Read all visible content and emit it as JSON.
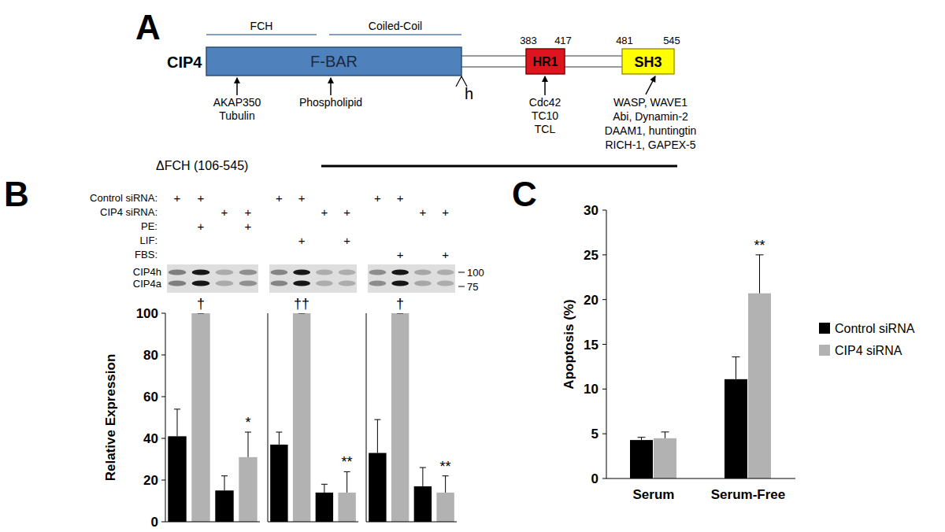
{
  "panel_labels": [
    "A",
    "B",
    "C"
  ],
  "diagram": {
    "protein": "CIP4",
    "main_domain": "F-BAR",
    "subregions": [
      "FCH",
      "Coiled-Coil"
    ],
    "hinge": "h",
    "hr1": {
      "label": "HR1",
      "start": 383,
      "end": 417
    },
    "sh3": {
      "label": "SH3",
      "start": 481,
      "end": 545
    },
    "binders": [
      [
        "AKAP350",
        "Tubulin"
      ],
      [
        "Phospholipid"
      ],
      [
        "Cdc42",
        "TC10",
        "TCL"
      ],
      [
        "WASP, WAVE1",
        "Abi, Dynamin-2",
        "DAAM1, huntingtin",
        "RICH-1, GAPEX-5"
      ]
    ],
    "construct": "ΔFCH (106-545)"
  },
  "blot": {
    "rows": [
      {
        "label": "Control siRNA:",
        "groups": [
          [
            "+",
            "+",
            null,
            null
          ],
          [
            "+",
            "+",
            null,
            null
          ],
          [
            "+",
            "+",
            null,
            null
          ]
        ]
      },
      {
        "label": "CIP4 siRNA:",
        "groups": [
          [
            null,
            null,
            "+",
            "+"
          ],
          [
            null,
            null,
            "+",
            "+"
          ],
          [
            null,
            null,
            "+",
            "+"
          ]
        ]
      },
      {
        "label": "PE:",
        "groups": [
          [
            null,
            "+",
            null,
            "+"
          ],
          [
            null,
            null,
            null,
            null
          ],
          [
            null,
            null,
            null,
            null
          ]
        ]
      },
      {
        "label": "LIF:",
        "groups": [
          [
            null,
            null,
            null,
            null
          ],
          [
            null,
            "+",
            null,
            "+"
          ],
          [
            null,
            null,
            null,
            null
          ]
        ]
      },
      {
        "label": "FBS:",
        "groups": [
          [
            null,
            null,
            null,
            null
          ],
          [
            null,
            null,
            null,
            null
          ],
          [
            null,
            "+",
            null,
            "+"
          ]
        ]
      }
    ],
    "bands": [
      "CIP4h",
      "CIP4a"
    ],
    "size_markers": [
      100,
      75
    ]
  },
  "chart_data": [
    {
      "type": "bar",
      "categories": [
        null,
        null,
        null,
        null
      ],
      "values": [
        41,
        100,
        15,
        31
      ],
      "errors": [
        13,
        0,
        7,
        12
      ],
      "colors": [
        "#000000",
        "#b2b2b2",
        "#000000",
        "#b2b2b2"
      ],
      "annotations": [
        null,
        "†",
        null,
        "*"
      ],
      "ylim": [
        0,
        100
      ],
      "yticks": [
        0,
        20,
        40,
        60,
        80,
        100
      ],
      "ylabel": "Relative Expression",
      "tick_labels": "y"
    },
    {
      "type": "bar",
      "categories": [
        null,
        null,
        null,
        null
      ],
      "values": [
        37,
        100,
        14,
        14
      ],
      "errors": [
        6,
        0,
        4,
        10
      ],
      "colors": [
        "#000000",
        "#b2b2b2",
        "#000000",
        "#b2b2b2"
      ],
      "annotations": [
        null,
        "††",
        null,
        "**"
      ],
      "ylim": [
        0,
        100
      ],
      "tick_labels": false
    },
    {
      "type": "bar",
      "categories": [
        null,
        null,
        null,
        null
      ],
      "values": [
        33,
        100,
        17,
        14
      ],
      "errors": [
        16,
        0,
        9,
        8
      ],
      "colors": [
        "#000000",
        "#b2b2b2",
        "#000000",
        "#b2b2b2"
      ],
      "annotations": [
        null,
        "†",
        null,
        "**"
      ],
      "ylim": [
        0,
        100
      ],
      "tick_labels": false
    },
    {
      "type": "bar",
      "categories": [
        "Serum",
        "Serum-Free"
      ],
      "series": [
        {
          "name": "Control siRNA",
          "color": "#000000",
          "values": [
            4.3,
            11.1
          ],
          "errors": [
            0.3,
            2.5
          ]
        },
        {
          "name": "CIP4 siRNA",
          "color": "#b2b2b2",
          "values": [
            4.5,
            20.7
          ],
          "errors": [
            0.7,
            4.3
          ],
          "annotations": [
            null,
            "**"
          ]
        }
      ],
      "ylim": [
        0,
        30
      ],
      "yticks": [
        0,
        5,
        10,
        15,
        20,
        25,
        30
      ],
      "ylabel": "Apoptosis (%)",
      "legend": "right"
    }
  ]
}
